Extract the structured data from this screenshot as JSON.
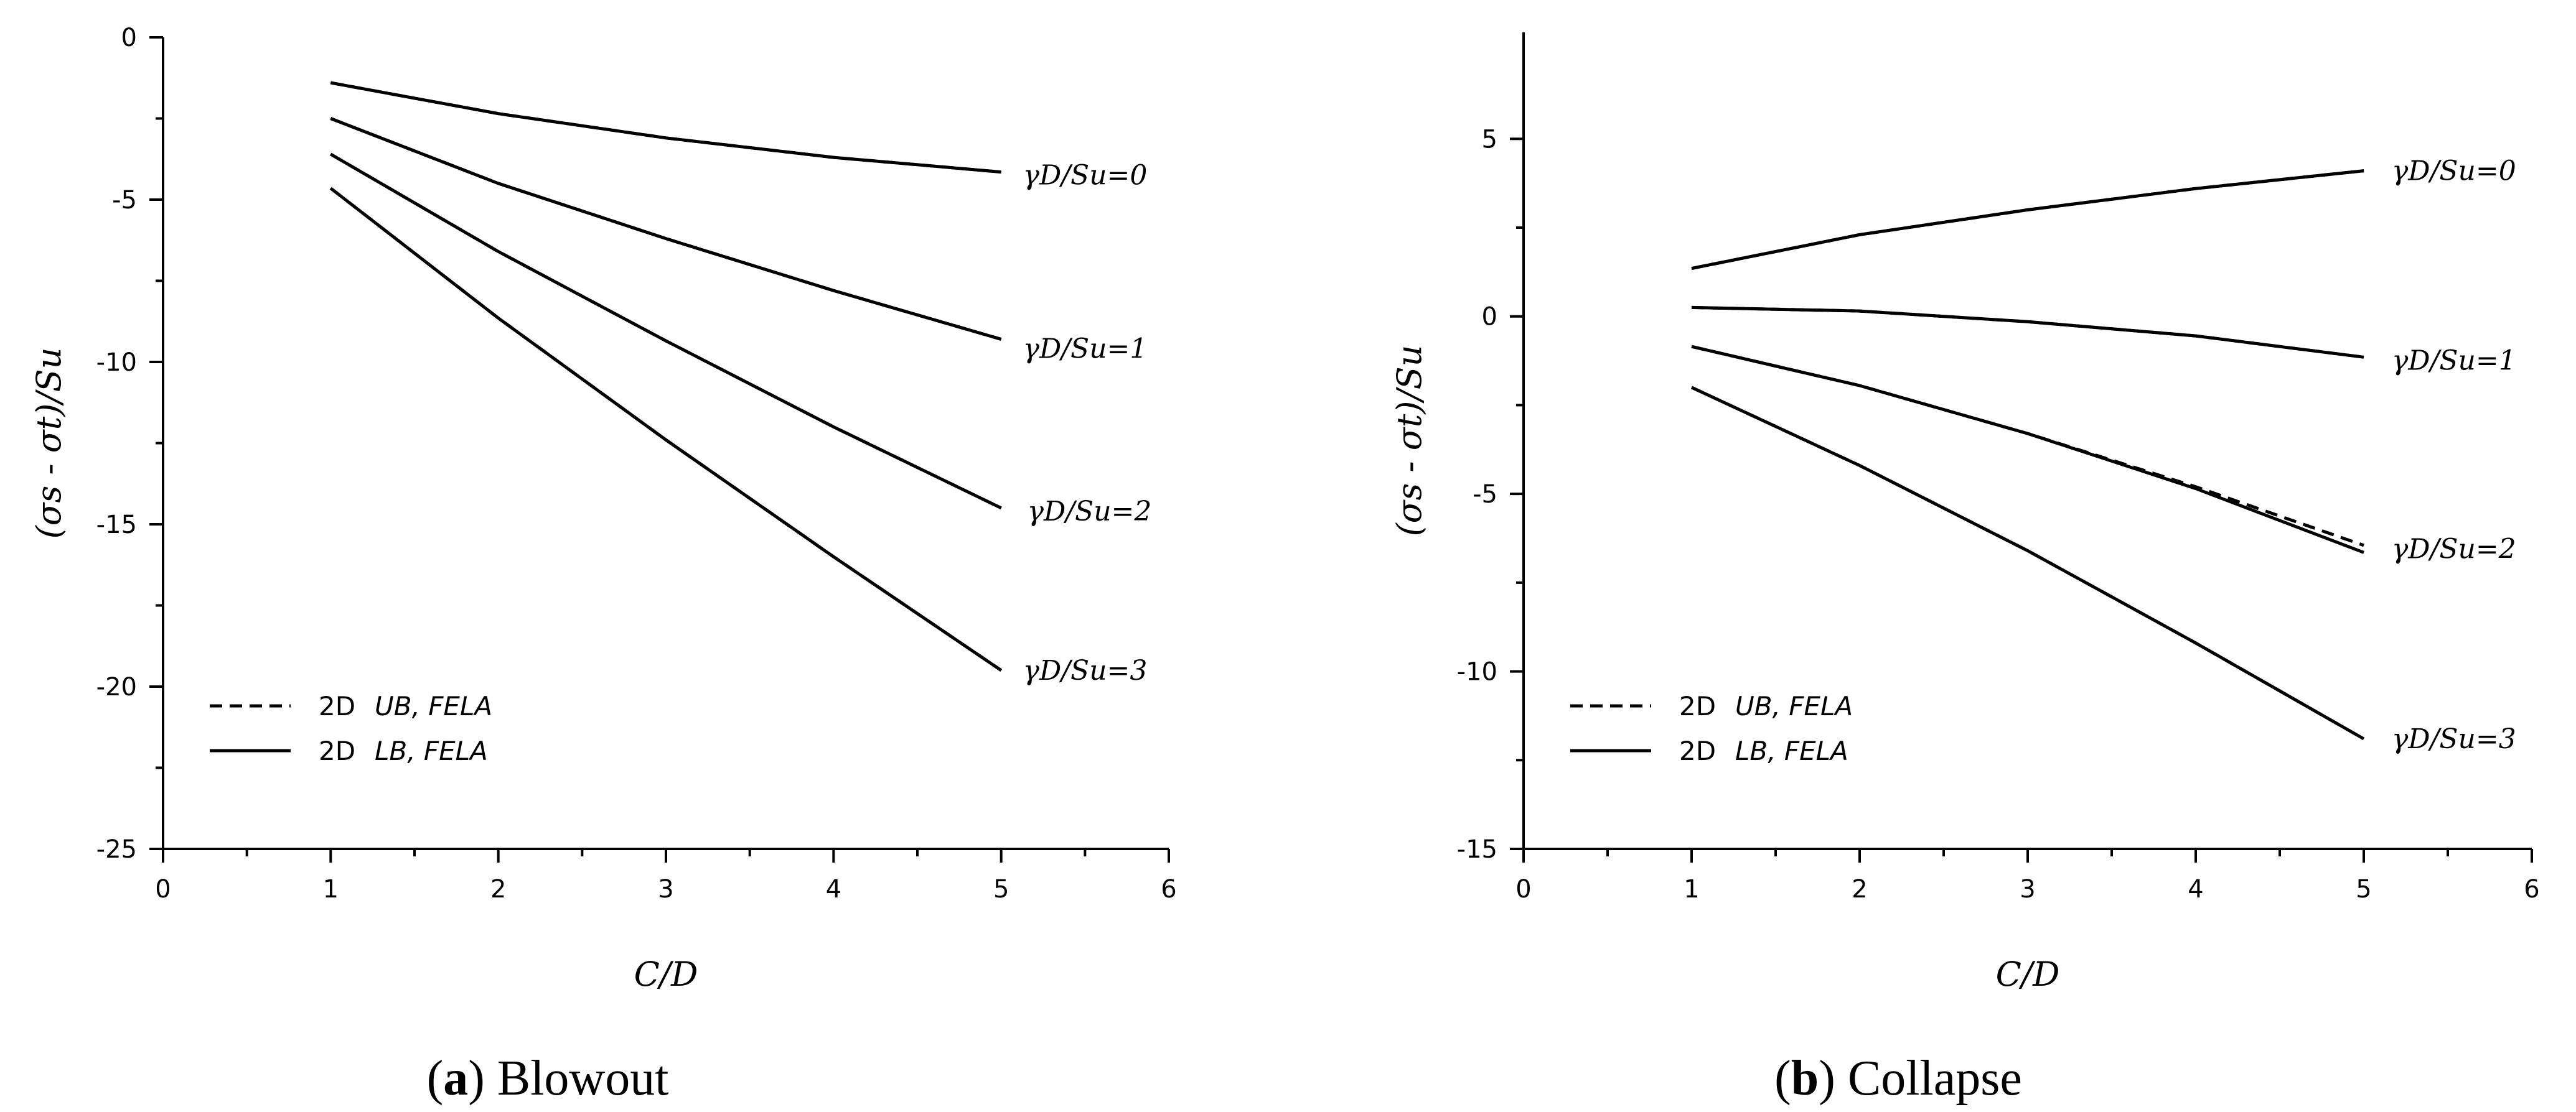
{
  "chart_data": [
    {
      "type": "line",
      "caption_letter": "a",
      "caption_text": "Blowout",
      "xlabel": "C/D",
      "ylabel": "(σs - σt)/Su",
      "xlim": [
        0,
        6
      ],
      "ylim": [
        -25,
        0
      ],
      "xticks": [
        "0",
        "1",
        "2",
        "3",
        "4",
        "5",
        "6"
      ],
      "yticks": [
        "0",
        "-5",
        "-10",
        "-15",
        "-20",
        "-25"
      ],
      "grid": false,
      "legend_position": "bottom-left",
      "legend": [
        {
          "method": "2D",
          "label": "UB, FELA",
          "style": "dashed"
        },
        {
          "method": "2D",
          "label": "LB, FELA",
          "style": "solid"
        }
      ],
      "series": [
        {
          "name": "γD/Su=0",
          "x": [
            1,
            2,
            3,
            4,
            5
          ],
          "y_lb": [
            -1.4,
            -2.35,
            -3.1,
            -3.7,
            -4.15
          ],
          "y_ub": [
            -1.4,
            -2.35,
            -3.1,
            -3.7,
            -4.15
          ]
        },
        {
          "name": "γD/Su=1",
          "x": [
            1,
            2,
            3,
            4,
            5
          ],
          "y_lb": [
            -2.5,
            -4.5,
            -6.2,
            -7.8,
            -9.3
          ],
          "y_ub": [
            -2.5,
            -4.5,
            -6.2,
            -7.8,
            -9.3
          ]
        },
        {
          "name": "γD/Su=2",
          "x": [
            1,
            2,
            3,
            4,
            5
          ],
          "y_lb": [
            -3.6,
            -6.6,
            -9.35,
            -12.0,
            -14.5
          ],
          "y_ub": [
            -3.6,
            -6.6,
            -9.35,
            -12.0,
            -14.5
          ]
        },
        {
          "name": "γD/Su=3",
          "x": [
            1,
            2,
            3,
            4,
            5
          ],
          "y_lb": [
            -4.65,
            -8.65,
            -12.4,
            -16.0,
            -19.5
          ],
          "y_ub": [
            -4.65,
            -8.65,
            -12.4,
            -16.0,
            -19.5
          ]
        }
      ]
    },
    {
      "type": "line",
      "caption_letter": "b",
      "caption_text": "Collapse",
      "xlabel": "C/D",
      "ylabel": "(σs - σt)/Su",
      "xlim": [
        0,
        6
      ],
      "ylim": [
        -15,
        8
      ],
      "xticks": [
        "0",
        "1",
        "2",
        "3",
        "4",
        "5",
        "6"
      ],
      "yticks": [
        "5",
        "0",
        "-5",
        "-10",
        "-15"
      ],
      "grid": false,
      "legend_position": "bottom-left",
      "legend": [
        {
          "method": "2D",
          "label": "UB, FELA",
          "style": "dashed"
        },
        {
          "method": "2D",
          "label": "LB, FELA",
          "style": "solid"
        }
      ],
      "series": [
        {
          "name": "γD/Su=0",
          "x": [
            1,
            2,
            3,
            4,
            5
          ],
          "y_lb": [
            1.35,
            2.3,
            3.0,
            3.6,
            4.1
          ],
          "y_ub": [
            1.35,
            2.3,
            3.0,
            3.6,
            4.1
          ]
        },
        {
          "name": "γD/Su=1",
          "x": [
            1,
            2,
            3,
            4,
            5
          ],
          "y_lb": [
            0.25,
            0.15,
            -0.15,
            -0.55,
            -1.15
          ],
          "y_ub": [
            0.25,
            0.15,
            -0.15,
            -0.55,
            -1.15
          ]
        },
        {
          "name": "γD/Su=2",
          "x": [
            1,
            2,
            3,
            4,
            5
          ],
          "y_lb": [
            -0.85,
            -1.95,
            -3.3,
            -4.85,
            -6.65
          ],
          "y_ub": [
            -0.85,
            -1.95,
            -3.3,
            -4.8,
            -6.45
          ]
        },
        {
          "name": "γD/Su=3",
          "x": [
            1,
            2,
            3,
            4,
            5
          ],
          "y_lb": [
            -2.0,
            -4.2,
            -6.6,
            -9.2,
            -11.9
          ],
          "y_ub": [
            -2.0,
            -4.2,
            -6.6,
            -9.2,
            -11.9
          ]
        }
      ]
    }
  ]
}
